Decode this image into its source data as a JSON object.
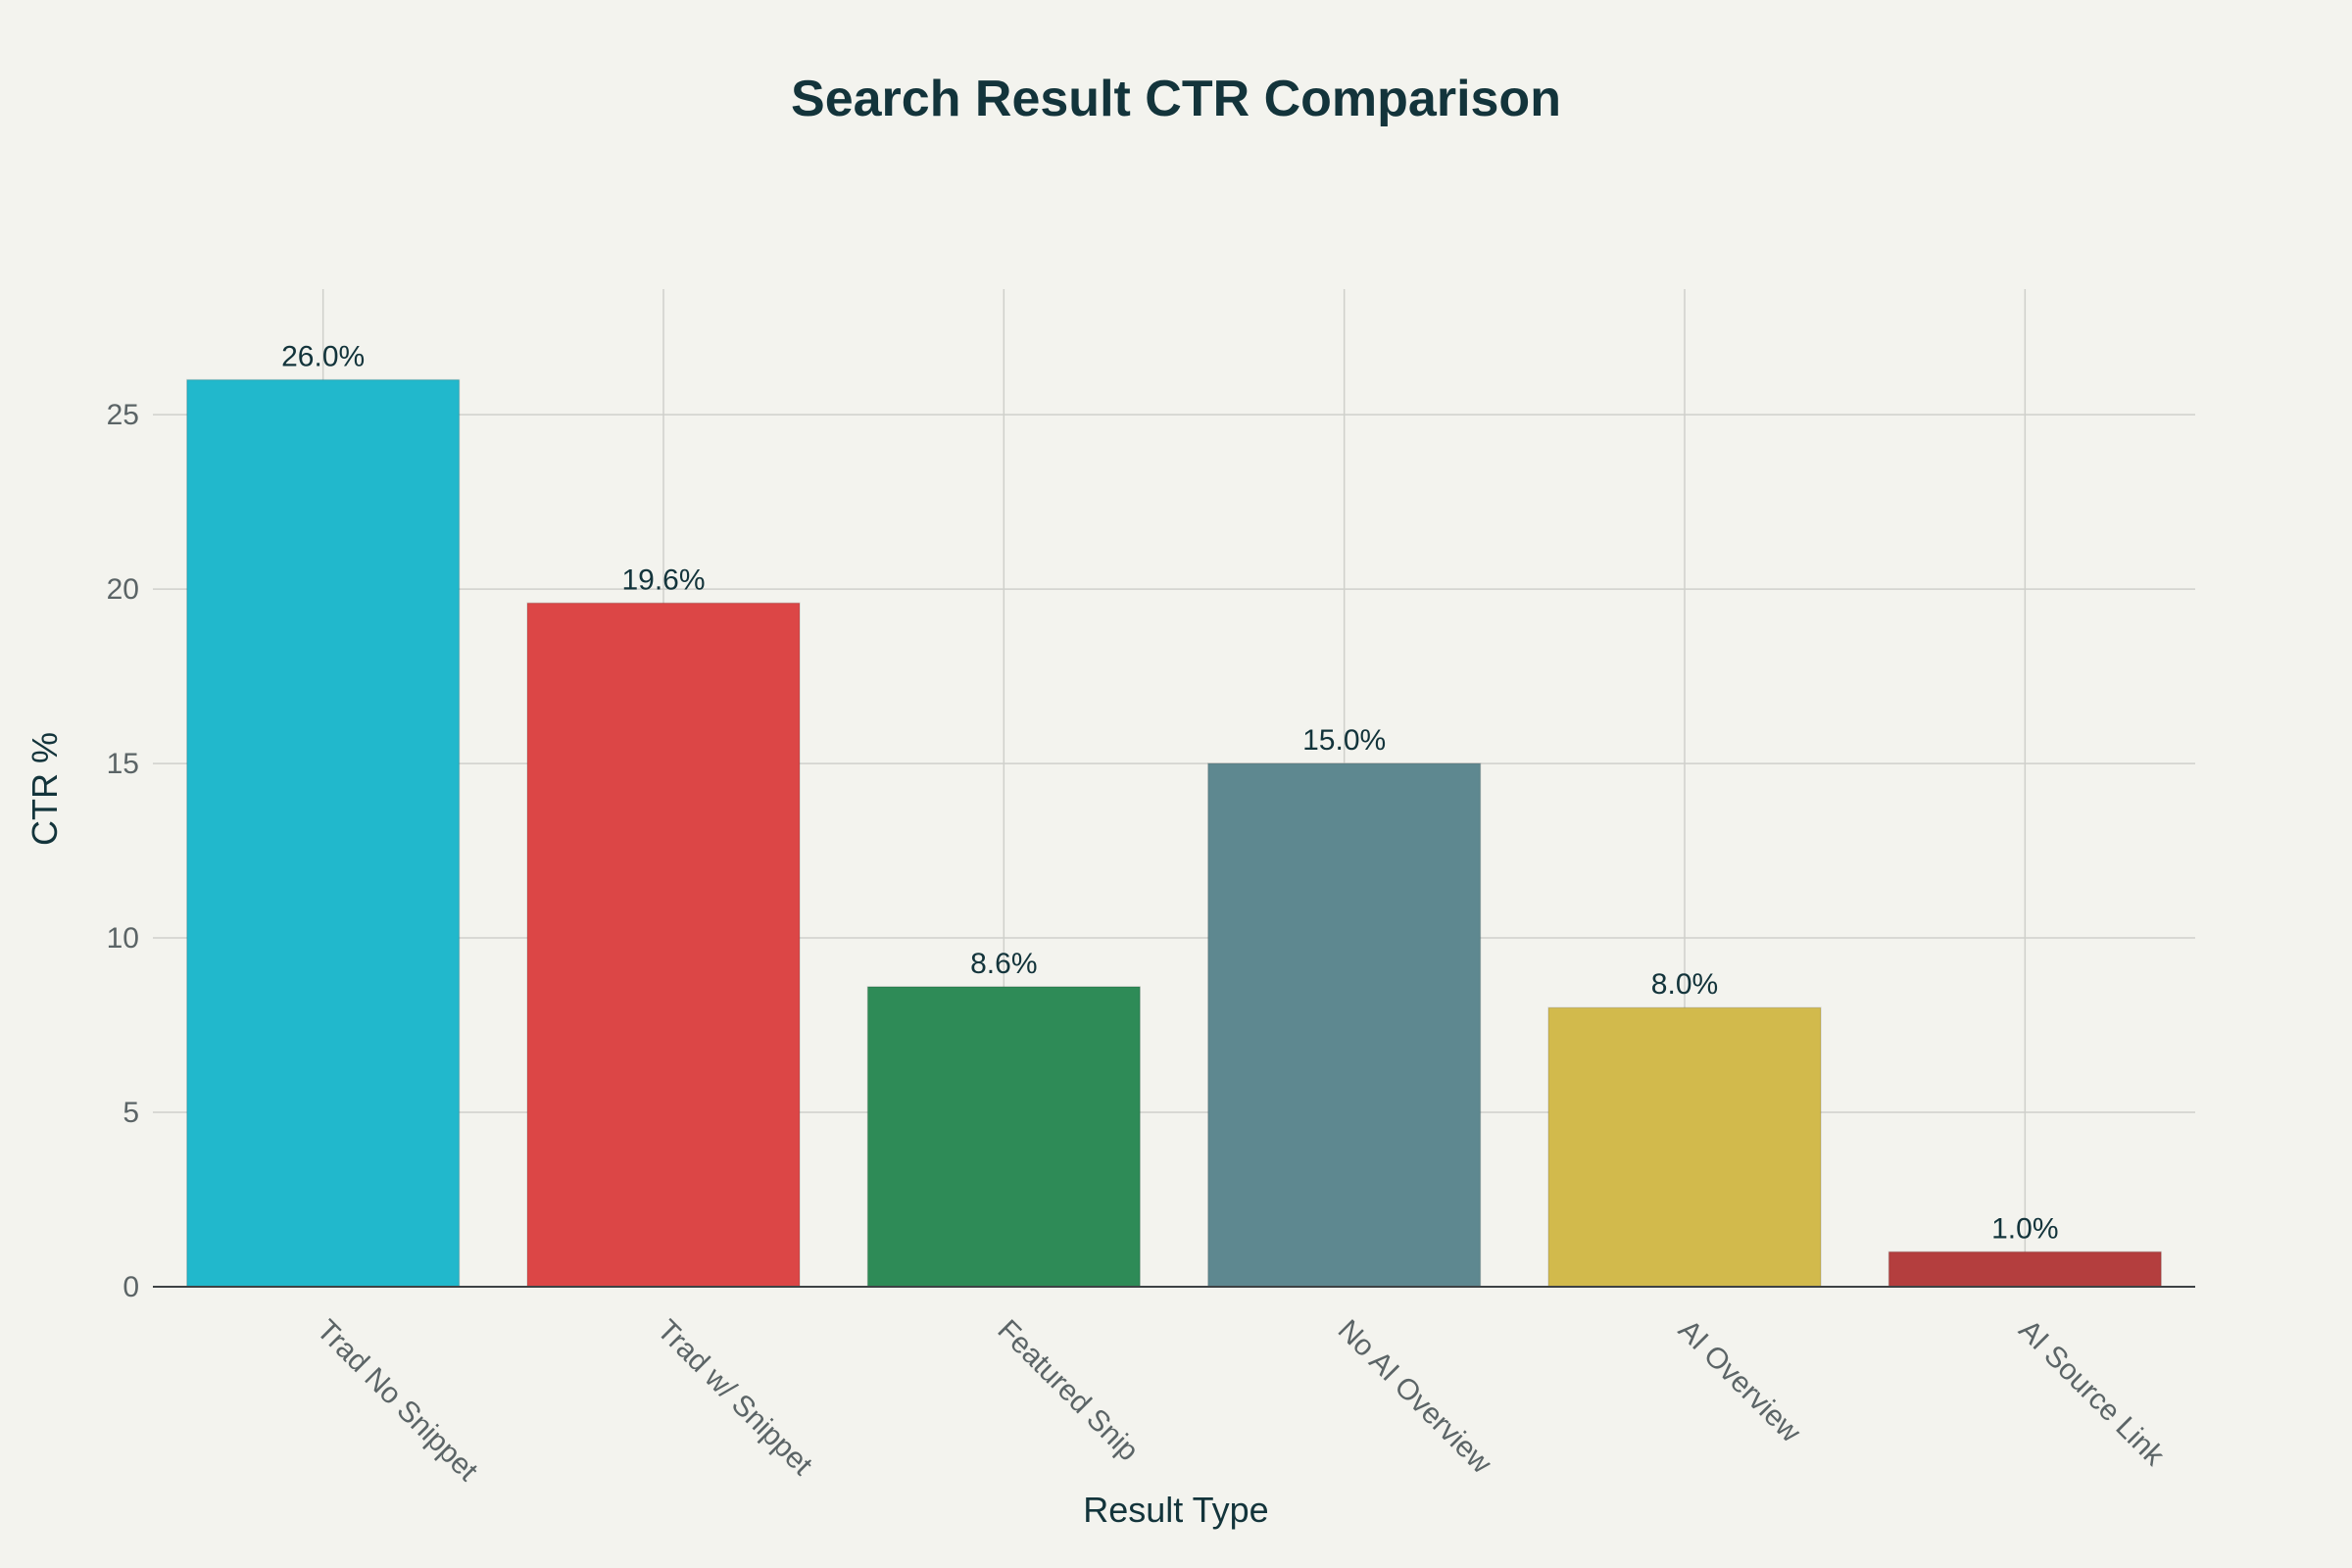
{
  "chart_data": {
    "type": "bar",
    "title": "Search Result CTR Comparison",
    "xlabel": "Result Type",
    "ylabel": "CTR %",
    "categories": [
      "Trad No Snippet",
      "Trad w/ Snippet",
      "Featured Snip",
      "No AI Overview",
      "AI Overview",
      "AI Source Link"
    ],
    "values": [
      26.0,
      19.6,
      8.6,
      15.0,
      8.0,
      1.0
    ],
    "data_labels": [
      "26.0%",
      "19.6%",
      "8.6%",
      "15.0%",
      "8.0%",
      "1.0%"
    ],
    "colors": [
      "#21b8cc",
      "#dc4646",
      "#2e8b57",
      "#5e8890",
      "#d2ba4c",
      "#b43e3e"
    ],
    "ylim": [
      0,
      28.6
    ],
    "yticks": [
      0,
      5,
      10,
      15,
      20,
      25
    ],
    "grid": true,
    "legend": "none"
  }
}
